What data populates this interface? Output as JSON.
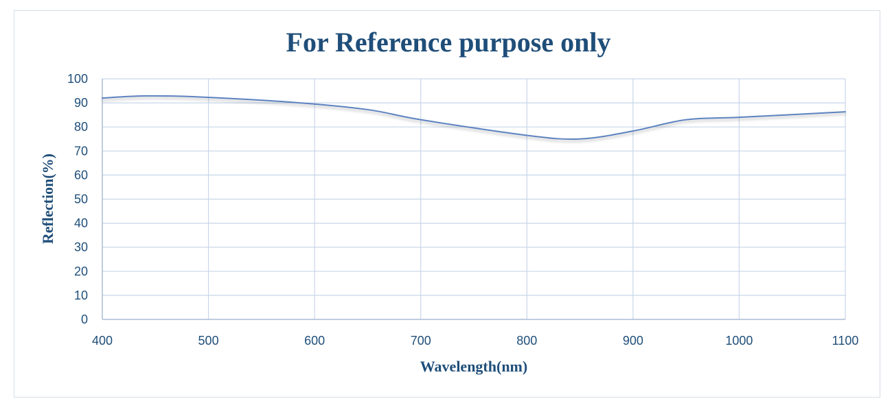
{
  "chart_data": {
    "type": "line",
    "title": "For Reference purpose only",
    "xlabel": "Wavelength(nm)",
    "ylabel": "Reflection(%)",
    "xlim": [
      400,
      1100
    ],
    "ylim": [
      0,
      100
    ],
    "x_ticks": [
      "400",
      "500",
      "600",
      "700",
      "800",
      "900",
      "1000",
      "1100"
    ],
    "y_ticks": [
      "0",
      "10",
      "20",
      "30",
      "40",
      "50",
      "60",
      "70",
      "80",
      "90",
      "100"
    ],
    "grid": true,
    "legend": "none",
    "series": [
      {
        "x": [
          400,
          440,
          490,
          580,
          650,
          700,
          800,
          850,
          900,
          950,
          1000,
          1100
        ],
        "y": [
          92,
          92.9,
          92.5,
          90.2,
          87.2,
          83,
          76.5,
          75,
          78.3,
          83,
          84,
          86.3
        ],
        "color": "#5b82c0"
      }
    ],
    "colors": {
      "line": "#5b82c0",
      "grid": "#c7d6e9",
      "text": "#1f4e79",
      "axis": "#a9bcd6"
    }
  }
}
